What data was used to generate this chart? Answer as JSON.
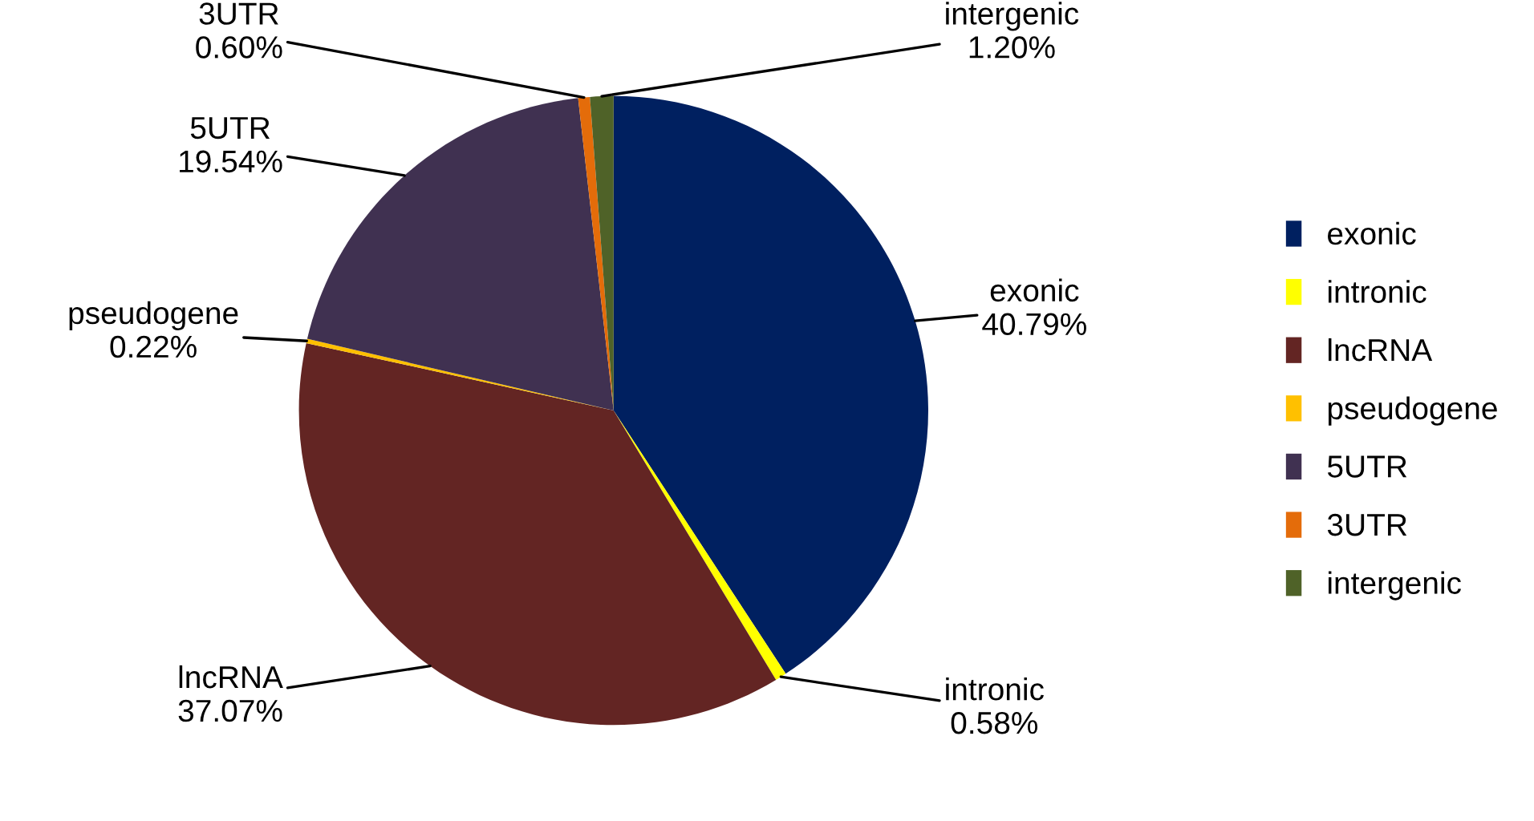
{
  "chart_data": {
    "type": "pie",
    "categories": [
      "exonic",
      "intronic",
      "lncRNA",
      "pseudogene",
      "5UTR",
      "3UTR",
      "intergenic"
    ],
    "values": [
      40.79,
      0.58,
      37.07,
      0.22,
      19.54,
      0.6,
      1.2
    ],
    "value_labels": [
      "40.79%",
      "0.58%",
      "37.07%",
      "0.22%",
      "19.54%",
      "0.60%",
      "1.20%"
    ],
    "colors": [
      "#002060",
      "#ffff00",
      "#632523",
      "#ffc000",
      "#403151",
      "#e46c0a",
      "#4f6228"
    ],
    "legend": "right"
  }
}
